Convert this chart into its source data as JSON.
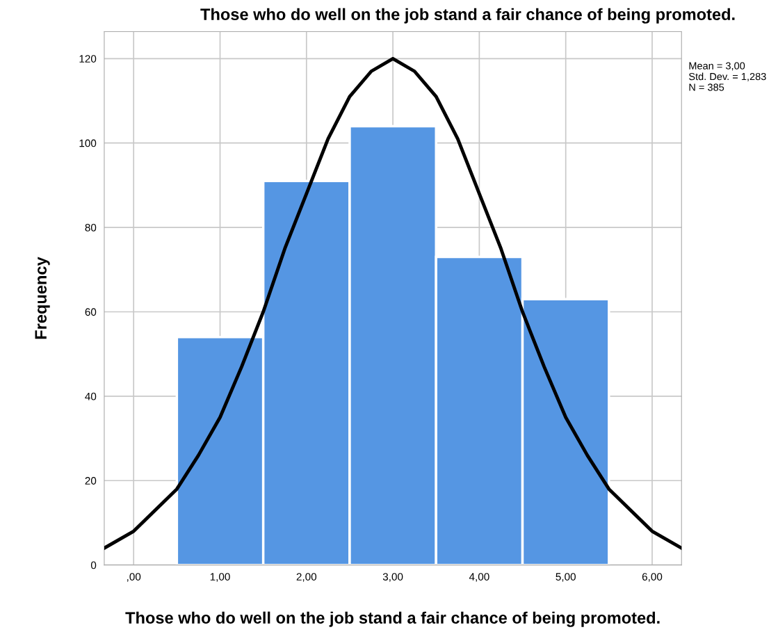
{
  "chart_data": {
    "type": "histogram",
    "title": "Those who do well on the job stand a fair chance of being promoted.",
    "xlabel": "Those who do well on the job stand a fair chance of being promoted.",
    "ylabel": "Frequency",
    "bins": [
      0.5,
      1.5,
      2.5,
      3.5,
      4.5,
      5.5
    ],
    "values": [
      54,
      91,
      104,
      73,
      63
    ],
    "color": "#5596e3",
    "series": [
      {
        "type": "line",
        "color": "#000000",
        "x": [
          -0.34,
          0,
          0.5,
          0.75,
          1,
          1.25,
          1.5,
          1.75,
          2,
          2.25,
          2.5,
          2.75,
          3,
          3.25,
          3.5,
          3.75,
          4,
          4.25,
          4.5,
          4.75,
          5,
          5.25,
          5.5,
          6,
          6.34
        ],
        "values": [
          4,
          8,
          18,
          26,
          35,
          47,
          60,
          75,
          88,
          101,
          111,
          117,
          120,
          117,
          111,
          101,
          88,
          75,
          60,
          47,
          35,
          26,
          18,
          8,
          4
        ]
      }
    ],
    "xlim": [
      -0.34,
      6.34
    ],
    "xticks": [
      {
        "value": 0,
        "label": ",00"
      },
      {
        "value": 1,
        "label": "1,00"
      },
      {
        "value": 2,
        "label": "2,00"
      },
      {
        "value": 3,
        "label": "3,00"
      },
      {
        "value": 4,
        "label": "4,00"
      },
      {
        "value": 5,
        "label": "5,00"
      },
      {
        "value": 6,
        "label": "6,00"
      }
    ],
    "ylim": [
      0,
      126.4
    ],
    "yticks": [
      0,
      20,
      40,
      60,
      80,
      100,
      120
    ],
    "grid": true,
    "annotations": [
      "Mean = 3,00",
      "Std. Dev. = 1,283",
      "N = 385"
    ]
  }
}
